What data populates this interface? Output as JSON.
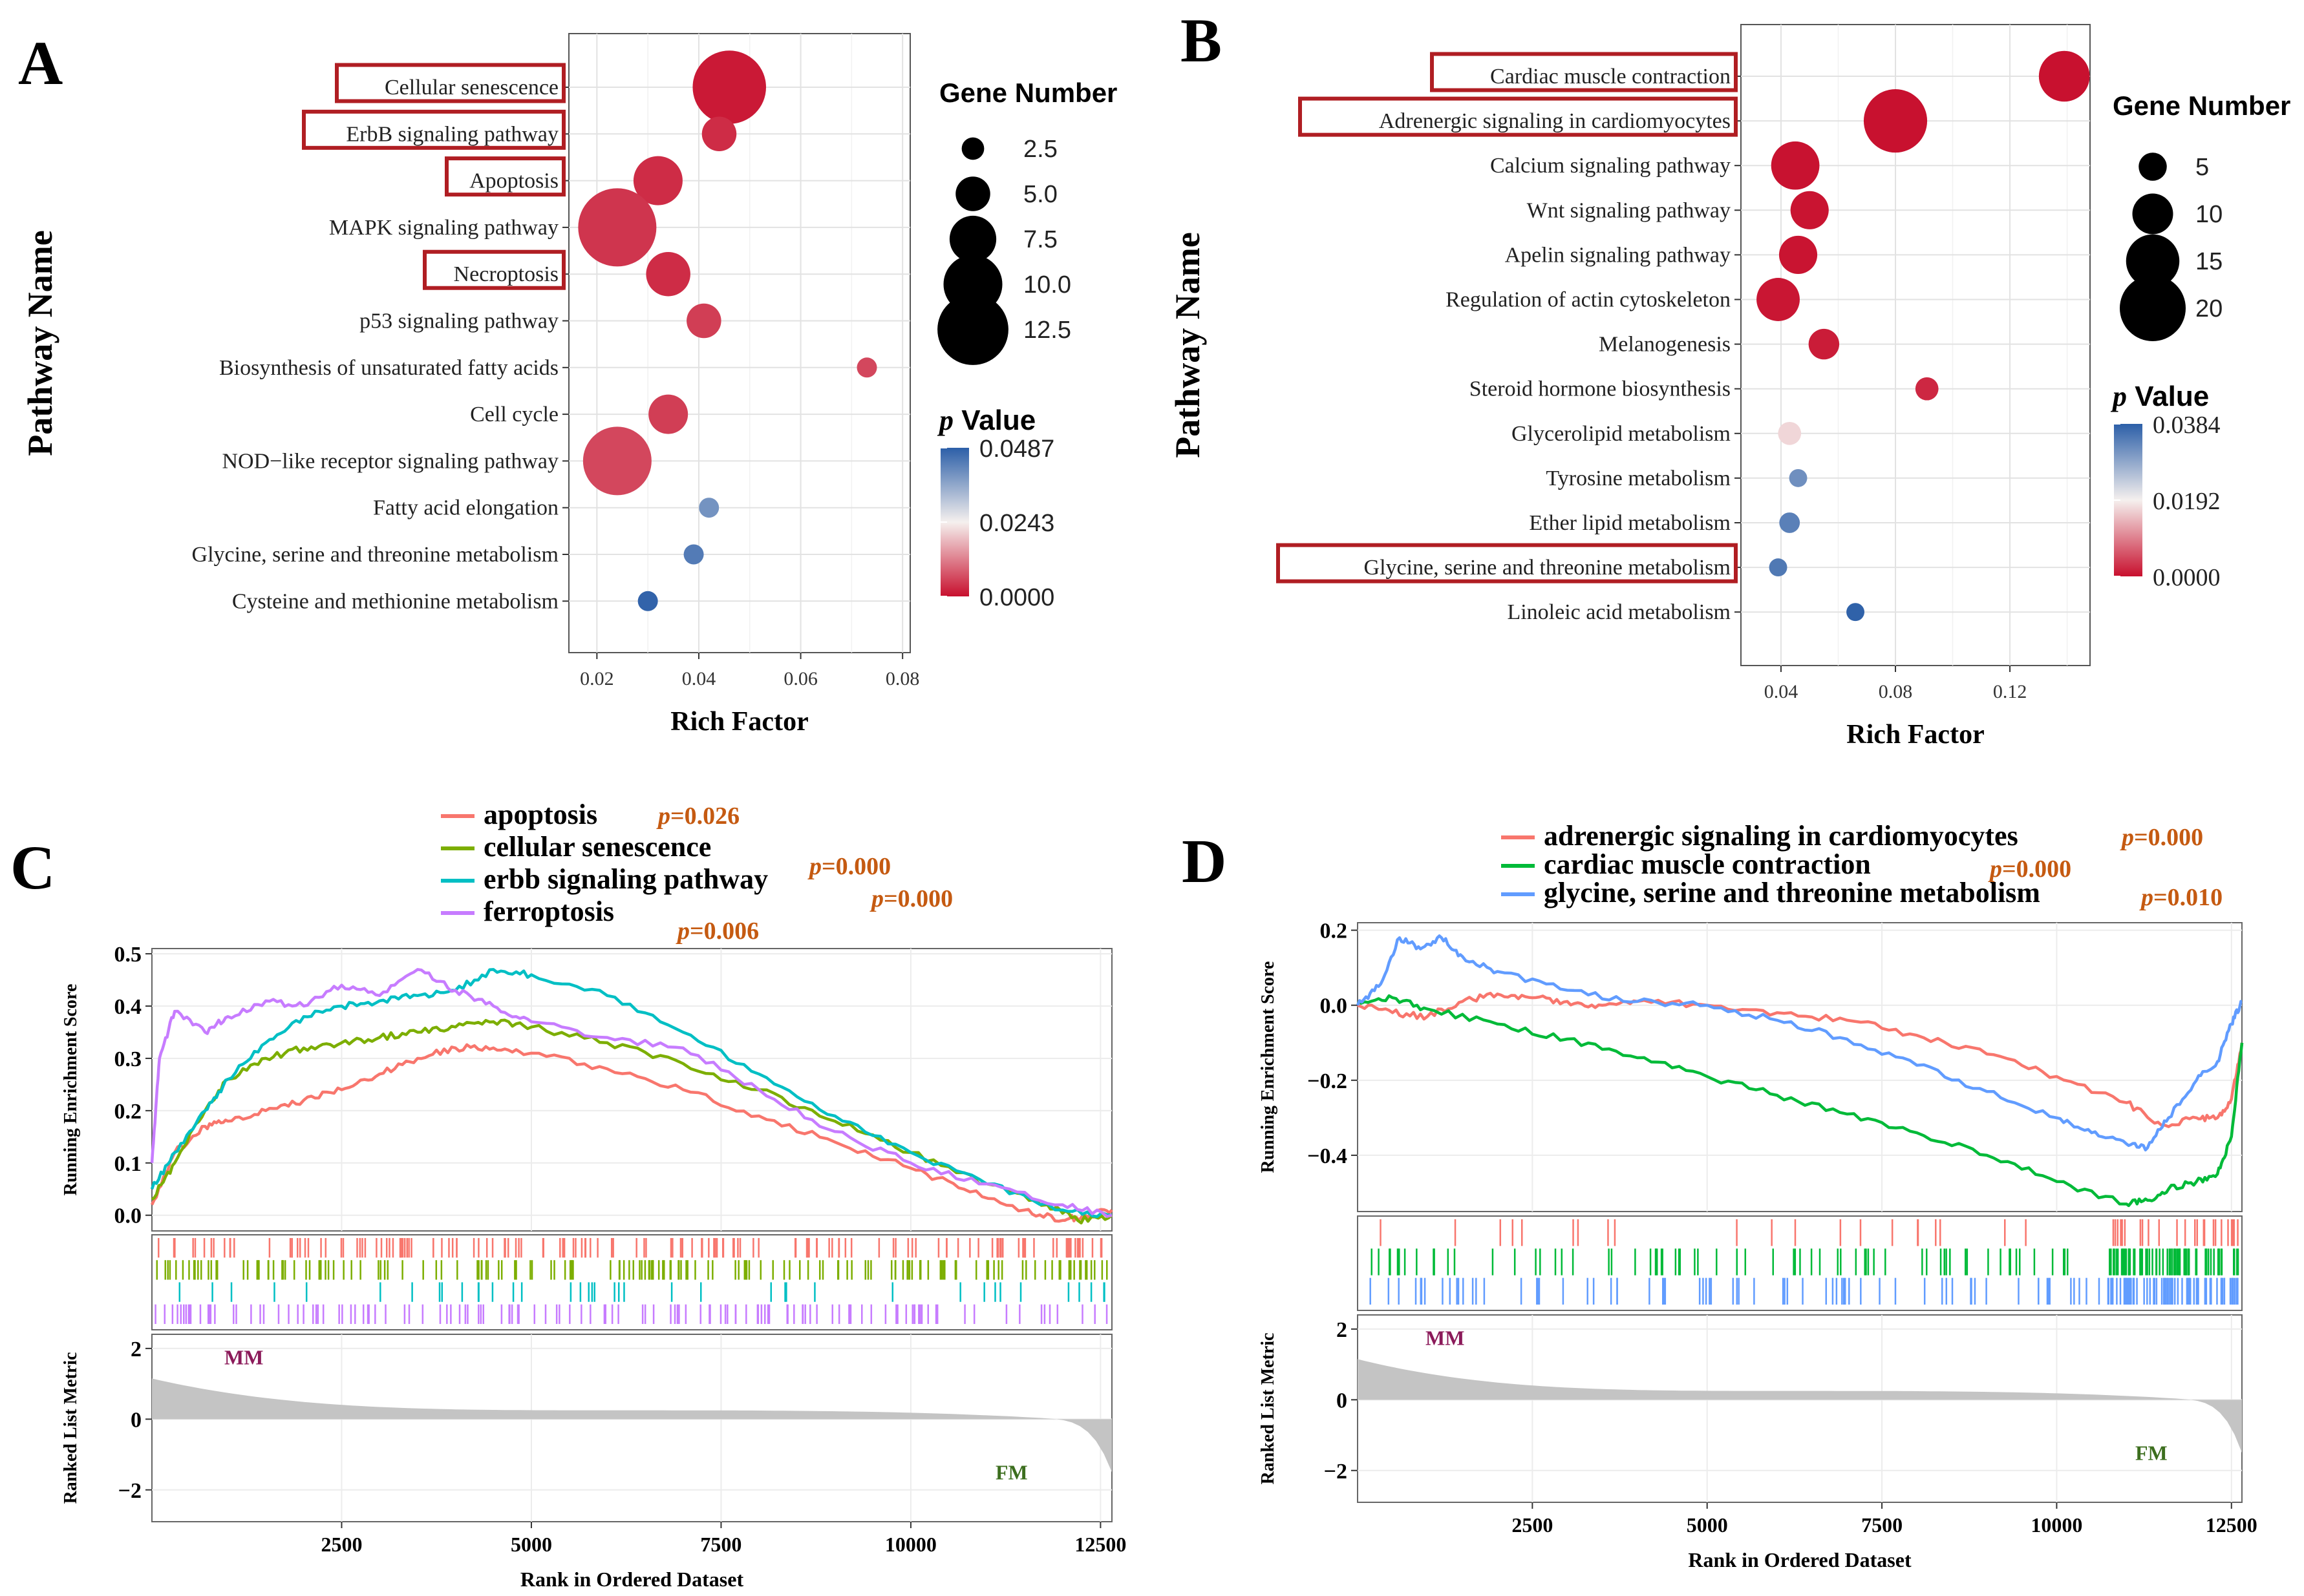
{
  "chart_data": [
    {
      "panel_label": "A",
      "type": "scatter",
      "xlabel": "Rich Factor",
      "ylabel": "Pathway Name",
      "xlim": [
        0.0145,
        0.0815
      ],
      "xticks": [
        0.02,
        0.04,
        0.06,
        0.08
      ],
      "xtick_labels": [
        "0.02",
        "0.04",
        "0.06",
        "0.08"
      ],
      "categories": [
        "Cellular senescence",
        "ErbB signaling pathway",
        "Apoptosis",
        "MAPK signaling pathway",
        "Necroptosis",
        "p53 signaling pathway",
        "Biosynthesis of unsaturated fatty acids",
        "Cell cycle",
        "NOD−like receptor signaling pathway",
        "Fatty acid elongation",
        "Glycine, serine and threonine metabolism",
        "Cysteine and methionine metabolism"
      ],
      "highlighted": [
        "Cellular senescence",
        "ErbB signaling pathway",
        "Apoptosis",
        "Necroptosis"
      ],
      "rich_factor": [
        0.046,
        0.044,
        0.032,
        0.024,
        0.034,
        0.041,
        0.073,
        0.034,
        0.024,
        0.042,
        0.039,
        0.03
      ],
      "gene_number": [
        13,
        5,
        8,
        14,
        7,
        5,
        2,
        6,
        12,
        2,
        2,
        2
      ],
      "p_value": [
        0.001,
        0.003,
        0.003,
        0.004,
        0.003,
        0.005,
        0.006,
        0.005,
        0.006,
        0.04,
        0.044,
        0.048
      ],
      "size_legend": {
        "title": "Gene Number",
        "values": [
          2.5,
          5.0,
          7.5,
          10.0,
          12.5
        ],
        "labels": [
          "2.5",
          "5.0",
          "7.5",
          "10.0",
          "12.5"
        ]
      },
      "color_legend": {
        "title_letter": "p",
        "title_rest": " Value",
        "labels": [
          "0.0487",
          "0.0243",
          "0.0000"
        ]
      },
      "color_scale": {
        "low": "#c8102e",
        "mid": "#f5f0ee",
        "high": "#2c5fa8"
      }
    },
    {
      "panel_label": "B",
      "type": "scatter",
      "xlabel": "Rich Factor",
      "ylabel": "Pathway Name",
      "xlim": [
        0.026,
        0.148
      ],
      "xticks": [
        0.04,
        0.08,
        0.12
      ],
      "xtick_labels": [
        "0.04",
        "0.08",
        "0.12"
      ],
      "categories": [
        "Cardiac muscle contraction",
        "Adrenergic signaling in cardiomyocytes",
        "Calcium signaling pathway",
        "Wnt signaling pathway",
        "Apelin signaling pathway",
        "Regulation of actin cytoskeleton",
        "Melanogenesis",
        "Steroid hormone biosynthesis",
        "Glycerolipid metabolism",
        "Tyrosine metabolism",
        "Ether lipid metabolism",
        "Glycine, serine and threonine metabolism",
        "Linoleic acid metabolism"
      ],
      "highlighted": [
        "Cardiac muscle contraction",
        "Adrenergic signaling in cardiomyocytes",
        "Glycine, serine and threonine metabolism"
      ],
      "rich_factor": [
        0.139,
        0.08,
        0.045,
        0.05,
        0.046,
        0.039,
        0.055,
        0.091,
        0.043,
        0.046,
        0.043,
        0.039,
        0.066
      ],
      "gene_number": [
        14,
        19,
        13,
        9,
        9,
        11,
        6,
        3,
        3,
        1,
        2,
        1,
        1
      ],
      "p_value": [
        0.0001,
        0.0001,
        0.0002,
        0.0003,
        0.0003,
        0.0005,
        0.001,
        0.002,
        0.017,
        0.032,
        0.034,
        0.035,
        0.038
      ],
      "size_legend": {
        "title": "Gene Number",
        "values": [
          5,
          10,
          15,
          20
        ],
        "labels": [
          "5",
          "10",
          "15",
          "20"
        ]
      },
      "color_legend": {
        "title_letter": "p",
        "title_rest": " Value",
        "labels": [
          "0.0384",
          "0.0192",
          "0.0000"
        ]
      },
      "color_scale": {
        "low": "#c8102e",
        "mid": "#f5f0ee",
        "high": "#2c5fa8"
      }
    },
    {
      "panel_label": "C",
      "type": "line",
      "xlabel": "Rank in Ordered Dataset",
      "ylabel_top": "Running Enrichment Score",
      "ylabel_bottom": "Ranked List Metric",
      "xlim": [
        0,
        12650
      ],
      "xticks": [
        2500,
        5000,
        7500,
        10000,
        12500
      ],
      "xtick_labels": [
        "2500",
        "5000",
        "7500",
        "10000",
        "12500"
      ],
      "ylim_top": [
        -0.03,
        0.51
      ],
      "yticks_top": [
        0.0,
        0.1,
        0.2,
        0.3,
        0.4,
        0.5
      ],
      "ytick_labels_top": [
        "0.0",
        "0.1",
        "0.2",
        "0.3",
        "0.4",
        "0.5"
      ],
      "ylim_bottom": [
        -2.9,
        2.4
      ],
      "yticks_bottom": [
        2,
        0,
        -2
      ],
      "ytick_labels_bottom": [
        "2",
        "0",
        "−2"
      ],
      "group_high": "MM",
      "group_low": "FM",
      "series": [
        {
          "name": "apoptosis",
          "pvalue": "p=0.026",
          "color": "#f8766d",
          "x": [
            0,
            300,
            700,
            1000,
            1500,
            2000,
            2500,
            3000,
            3500,
            4000,
            4500,
            5000,
            6000,
            7000,
            8000,
            9000,
            10000,
            10700,
            11500,
            12000,
            12300,
            12650
          ],
          "y": [
            0.02,
            0.12,
            0.17,
            0.18,
            0.2,
            0.22,
            0.24,
            0.27,
            0.3,
            0.32,
            0.32,
            0.31,
            0.28,
            0.24,
            0.19,
            0.14,
            0.09,
            0.05,
            0.01,
            -0.01,
            0.0,
            0.01
          ]
        },
        {
          "name": "cellular senescence",
          "pvalue": "p=0.000",
          "color": "#7cae00",
          "x": [
            0,
            300,
            700,
            1000,
            1500,
            2000,
            2500,
            3000,
            3500,
            4000,
            4500,
            5000,
            6000,
            7000,
            8000,
            9000,
            10000,
            11000,
            11800,
            12200,
            12650
          ],
          "y": [
            0.03,
            0.1,
            0.2,
            0.26,
            0.3,
            0.32,
            0.33,
            0.34,
            0.35,
            0.36,
            0.37,
            0.36,
            0.33,
            0.29,
            0.24,
            0.18,
            0.12,
            0.06,
            0.02,
            -0.01,
            0.0
          ]
        },
        {
          "name": "erbb signaling pathway",
          "pvalue": "p=0.000",
          "color": "#00bfc4",
          "x": [
            0,
            300,
            700,
            1000,
            1500,
            2000,
            2500,
            3000,
            3500,
            4000,
            4500,
            5000,
            6000,
            7000,
            8000,
            9000,
            10000,
            11000,
            12000,
            12650
          ],
          "y": [
            0.05,
            0.12,
            0.2,
            0.26,
            0.33,
            0.38,
            0.4,
            0.41,
            0.42,
            0.43,
            0.47,
            0.46,
            0.42,
            0.35,
            0.27,
            0.19,
            0.12,
            0.06,
            0.01,
            0.0
          ]
        },
        {
          "name": "ferroptosis",
          "pvalue": "p=0.006",
          "color": "#c77cff",
          "x": [
            0,
            100,
            300,
            700,
            1000,
            1500,
            2000,
            2500,
            3000,
            3500,
            4000,
            4500,
            5000,
            6000,
            7000,
            8000,
            9000,
            10000,
            11000,
            12000,
            12650
          ],
          "y": [
            0.1,
            0.3,
            0.39,
            0.35,
            0.38,
            0.41,
            0.4,
            0.44,
            0.42,
            0.47,
            0.43,
            0.4,
            0.37,
            0.34,
            0.32,
            0.24,
            0.16,
            0.1,
            0.06,
            0.02,
            0.0
          ]
        }
      ]
    },
    {
      "panel_label": "D",
      "type": "line",
      "xlabel": "Rank in Ordered Dataset",
      "ylabel_top": "Running Enrichment Score",
      "ylabel_bottom": "Ranked List Metric",
      "xlim": [
        0,
        12650
      ],
      "xticks": [
        2500,
        5000,
        7500,
        10000,
        12500
      ],
      "xtick_labels": [
        "2500",
        "5000",
        "7500",
        "10000",
        "12500"
      ],
      "ylim_top": [
        -0.55,
        0.22
      ],
      "yticks_top": [
        0.2,
        0.0,
        -0.2,
        -0.4
      ],
      "ytick_labels_top": [
        "0.2",
        "0.0",
        "−0.2",
        "−0.4"
      ],
      "ylim_bottom": [
        -2.9,
        2.4
      ],
      "yticks_bottom": [
        2,
        0,
        -2
      ],
      "ytick_labels_bottom": [
        "2",
        "0",
        "−2"
      ],
      "group_high": "MM",
      "group_low": "FM",
      "series": [
        {
          "name": "adrenergic signaling in cardiomyocytes",
          "pvalue": "p=0.000",
          "color": "#f8766d",
          "x": [
            0,
            500,
            1000,
            1500,
            2000,
            2500,
            3000,
            3500,
            4000,
            5000,
            6000,
            7000,
            8000,
            9000,
            10000,
            11000,
            11500,
            12000,
            12300,
            12500,
            12650
          ],
          "y": [
            0.0,
            -0.02,
            -0.03,
            0.01,
            0.03,
            0.02,
            0.01,
            0.0,
            0.01,
            0.0,
            -0.02,
            -0.04,
            -0.08,
            -0.13,
            -0.19,
            -0.26,
            -0.32,
            -0.3,
            -0.3,
            -0.25,
            -0.1
          ]
        },
        {
          "name": "cardiac muscle contraction",
          "pvalue": "p=0.000",
          "color": "#00ba38",
          "x": [
            0,
            500,
            1000,
            2000,
            3000,
            4000,
            5000,
            6000,
            7000,
            8000,
            9000,
            10000,
            11000,
            11300,
            11600,
            12000,
            12300,
            12500,
            12650
          ],
          "y": [
            0.01,
            0.02,
            -0.01,
            -0.05,
            -0.09,
            -0.14,
            -0.19,
            -0.24,
            -0.29,
            -0.34,
            -0.4,
            -0.47,
            -0.53,
            -0.52,
            -0.49,
            -0.47,
            -0.45,
            -0.35,
            -0.1
          ]
        },
        {
          "name": "glycine, serine and threonine metabolism",
          "pvalue": "p=0.010",
          "color": "#619cff",
          "x": [
            0,
            300,
            600,
            900,
            1200,
            1500,
            2000,
            3000,
            4000,
            5000,
            6000,
            7000,
            8000,
            9000,
            10000,
            10500,
            11000,
            11300,
            11600,
            12000,
            12300,
            12500,
            12650
          ],
          "y": [
            0.0,
            0.05,
            0.18,
            0.15,
            0.18,
            0.13,
            0.09,
            0.04,
            0.01,
            0.0,
            -0.04,
            -0.09,
            -0.16,
            -0.23,
            -0.3,
            -0.34,
            -0.37,
            -0.38,
            -0.3,
            -0.2,
            -0.15,
            -0.05,
            0.01
          ]
        }
      ]
    }
  ]
}
